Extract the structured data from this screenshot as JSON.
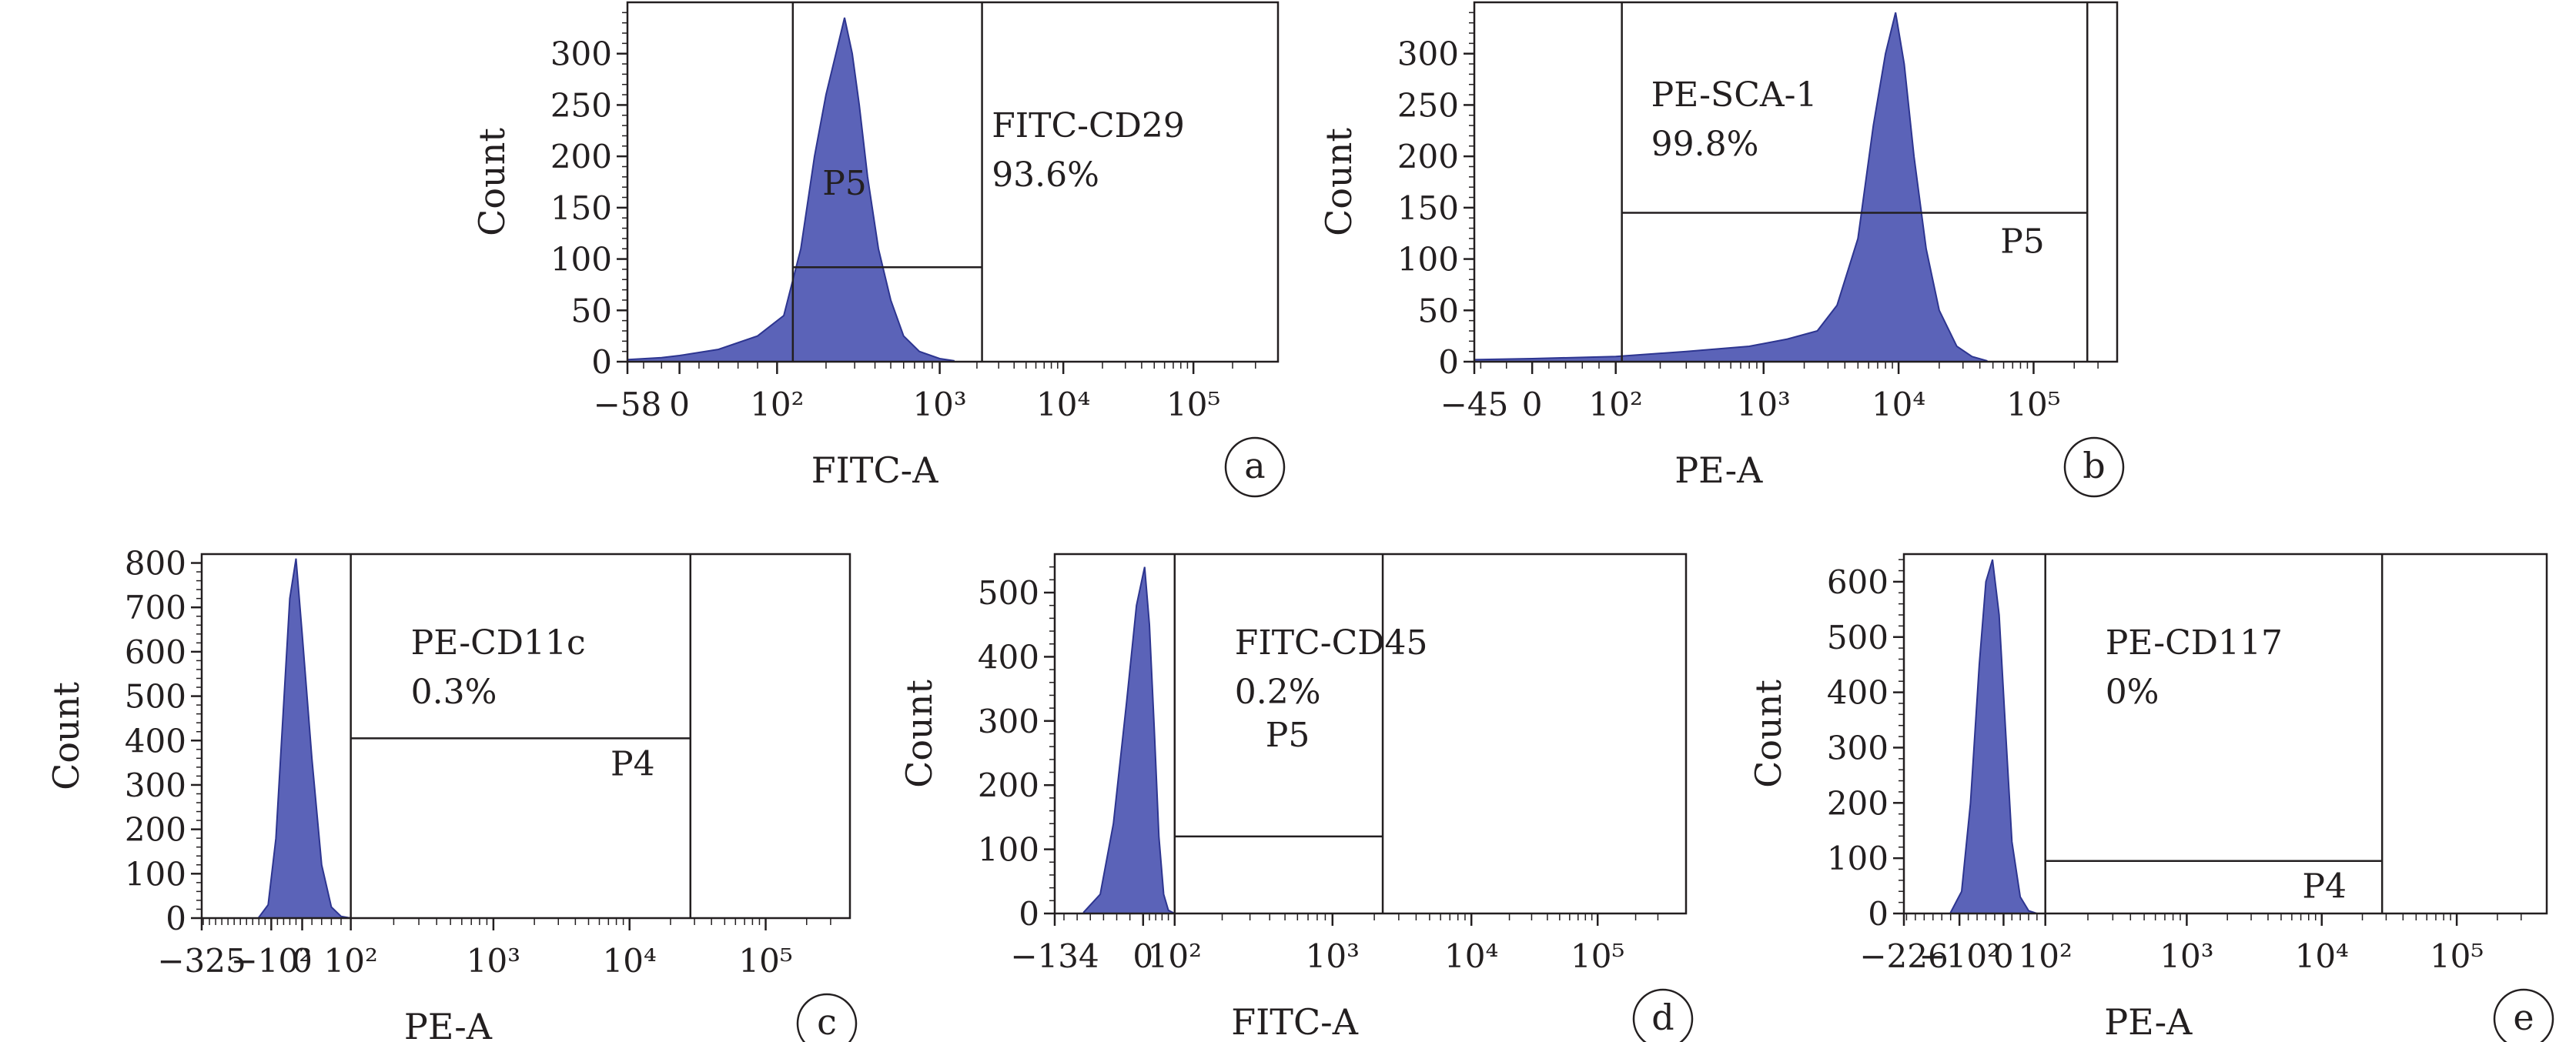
{
  "colors": {
    "fill": "#5b63b8",
    "stroke": "#2d3590",
    "line": "#231f20"
  },
  "chart_data": [
    {
      "id": "a",
      "type": "area",
      "panel_label": "a",
      "xlabel": "FITC-A",
      "ylabel": "Count",
      "xscale": "biexponential",
      "ylim": [
        0,
        350
      ],
      "yticks": [
        0,
        50,
        100,
        150,
        200,
        250,
        300
      ],
      "xtick_labels": [
        {
          "value": -58,
          "text": "−58"
        },
        {
          "value": 0,
          "text": "0"
        },
        {
          "value": 100,
          "text": "10²"
        },
        {
          "value": 1000,
          "text": "10³"
        },
        {
          "value": 10000,
          "text": "10⁴"
        },
        {
          "value": 100000,
          "text": "10⁵"
        }
      ],
      "series": [
        {
          "x": [
            -58,
            -20,
            0,
            40,
            80,
            110,
            140,
            170,
            200,
            230,
            260,
            290,
            320,
            360,
            420,
            500,
            600,
            750,
            1000,
            1300
          ],
          "y": [
            2,
            4,
            6,
            12,
            25,
            45,
            110,
            200,
            260,
            300,
            335,
            300,
            250,
            180,
            110,
            60,
            25,
            10,
            3,
            1
          ]
        }
      ],
      "gate": {
        "name": "P5",
        "x": [
          125,
          2200
        ],
        "level": 92
      },
      "annotation": {
        "label": "FITC-CD29",
        "percent": "93.6%"
      }
    },
    {
      "id": "b",
      "type": "area",
      "panel_label": "b",
      "xlabel": "PE-A",
      "ylabel": "Count",
      "xscale": "biexponential",
      "ylim": [
        0,
        350
      ],
      "yticks": [
        0,
        50,
        100,
        150,
        200,
        250,
        300
      ],
      "xtick_labels": [
        {
          "value": -45,
          "text": "−45"
        },
        {
          "value": 0,
          "text": "0"
        },
        {
          "value": 100,
          "text": "10²"
        },
        {
          "value": 1000,
          "text": "10³"
        },
        {
          "value": 10000,
          "text": "10⁴"
        },
        {
          "value": 100000,
          "text": "10⁵"
        }
      ],
      "series": [
        {
          "x": [
            -45,
            0,
            100,
            300,
            800,
            1500,
            2500,
            3500,
            5000,
            6500,
            8000,
            9500,
            11000,
            13000,
            16000,
            20000,
            27000,
            35000,
            45000
          ],
          "y": [
            2,
            3,
            5,
            10,
            15,
            22,
            30,
            55,
            120,
            230,
            300,
            340,
            290,
            200,
            110,
            50,
            15,
            5,
            1
          ]
        }
      ],
      "gate": {
        "name": "P5",
        "x": [
          110,
          250000
        ],
        "level": 145
      },
      "annotation": {
        "label": "PE-SCA-1",
        "percent": "99.8%"
      }
    },
    {
      "id": "c",
      "type": "area",
      "panel_label": "c",
      "xlabel": "PE-A",
      "ylabel": "Count",
      "xscale": "biexponential",
      "ylim": [
        0,
        820
      ],
      "yticks": [
        0,
        100,
        200,
        300,
        400,
        500,
        600,
        700,
        800
      ],
      "xtick_labels": [
        {
          "value": -325,
          "text": "−325"
        },
        {
          "value": -100,
          "text": "−10²"
        },
        {
          "value": 0,
          "text": "0"
        },
        {
          "value": 100,
          "text": "10²"
        },
        {
          "value": 1000,
          "text": "10³"
        },
        {
          "value": 10000,
          "text": "10⁴"
        },
        {
          "value": 100000,
          "text": "10⁵"
        }
      ],
      "series": [
        {
          "x": [
            -140,
            -110,
            -85,
            -60,
            -40,
            -20,
            0,
            20,
            40,
            60,
            80,
            100
          ],
          "y": [
            2,
            30,
            180,
            480,
            720,
            810,
            640,
            360,
            120,
            25,
            4,
            0
          ]
        }
      ],
      "gate": {
        "name": "P4",
        "x": [
          100,
          28000
        ],
        "level": 405
      },
      "annotation": {
        "label": "PE-CD11c",
        "percent": "0.3%"
      }
    },
    {
      "id": "d",
      "type": "area",
      "panel_label": "d",
      "xlabel": "FITC-A",
      "ylabel": "Count",
      "xscale": "biexponential",
      "ylim": [
        0,
        560
      ],
      "yticks": [
        0,
        100,
        200,
        300,
        400,
        500
      ],
      "xtick_labels": [
        {
          "value": -134,
          "text": "−134"
        },
        {
          "value": 0,
          "text": "0"
        },
        {
          "value": 100,
          "text": "10²"
        },
        {
          "value": 1000,
          "text": "10³"
        },
        {
          "value": 10000,
          "text": "10⁴"
        },
        {
          "value": 100000,
          "text": "10⁵"
        }
      ],
      "series": [
        {
          "x": [
            -90,
            -65,
            -45,
            -25,
            -10,
            5,
            20,
            35,
            50,
            65,
            80,
            100
          ],
          "y": [
            2,
            30,
            140,
            330,
            480,
            540,
            450,
            290,
            120,
            30,
            5,
            0
          ]
        }
      ],
      "gate": {
        "name": "P5",
        "x": [
          100,
          2300
        ],
        "level": 120
      },
      "annotation": {
        "label": "FITC-CD45",
        "percent": "0.2%"
      }
    },
    {
      "id": "e",
      "type": "area",
      "panel_label": "e",
      "xlabel": "PE-A",
      "ylabel": "Count",
      "xscale": "biexponential",
      "ylim": [
        0,
        650
      ],
      "yticks": [
        0,
        100,
        200,
        300,
        400,
        500,
        600
      ],
      "xtick_labels": [
        {
          "value": -226,
          "text": "−226"
        },
        {
          "value": -100,
          "text": "−10²"
        },
        {
          "value": 0,
          "text": "0"
        },
        {
          "value": 100,
          "text": "10²"
        },
        {
          "value": 1000,
          "text": "10³"
        },
        {
          "value": 10000,
          "text": "10⁴"
        },
        {
          "value": 100000,
          "text": "10⁵"
        }
      ],
      "series": [
        {
          "x": [
            -120,
            -95,
            -75,
            -55,
            -40,
            -25,
            -10,
            5,
            20,
            40,
            60,
            80
          ],
          "y": [
            2,
            40,
            200,
            450,
            600,
            640,
            540,
            330,
            130,
            30,
            5,
            0
          ]
        }
      ],
      "gate": {
        "name": "P4",
        "x": [
          100,
          28000
        ],
        "level": 95
      },
      "annotation": {
        "label": "PE-CD117",
        "percent": "0%"
      }
    }
  ]
}
